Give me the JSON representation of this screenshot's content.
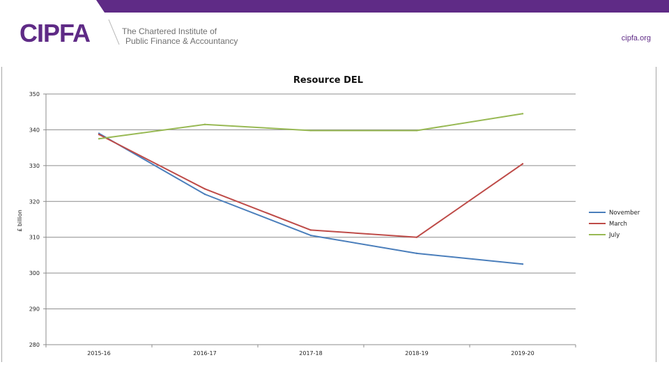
{
  "header": {
    "brand": "CIPFA",
    "tagline_1": "The Chartered Institute of",
    "tagline_2": "Public Finance & Accountancy",
    "site": "cipfa.org",
    "brand_color": "#5f2b86"
  },
  "chart_data": {
    "type": "line",
    "title": "Resource DEL",
    "ylabel": "£ billion",
    "xlabel": "",
    "categories": [
      "2015-16",
      "2016-17",
      "2017-18",
      "2018-19",
      "2019-20"
    ],
    "yticks": [
      280,
      290,
      300,
      310,
      320,
      330,
      340,
      350
    ],
    "ylim": [
      280,
      350
    ],
    "grid": true,
    "legend": "right",
    "series": [
      {
        "name": "November",
        "color": "#4a7ebb",
        "values": [
          339.0,
          322.0,
          310.5,
          305.5,
          302.5
        ]
      },
      {
        "name": "March",
        "color": "#be4b48",
        "values": [
          338.7,
          323.5,
          312.0,
          310.0,
          330.5
        ]
      },
      {
        "name": "July",
        "color": "#98b954",
        "values": [
          337.5,
          341.5,
          339.8,
          339.8,
          344.5
        ]
      }
    ]
  }
}
